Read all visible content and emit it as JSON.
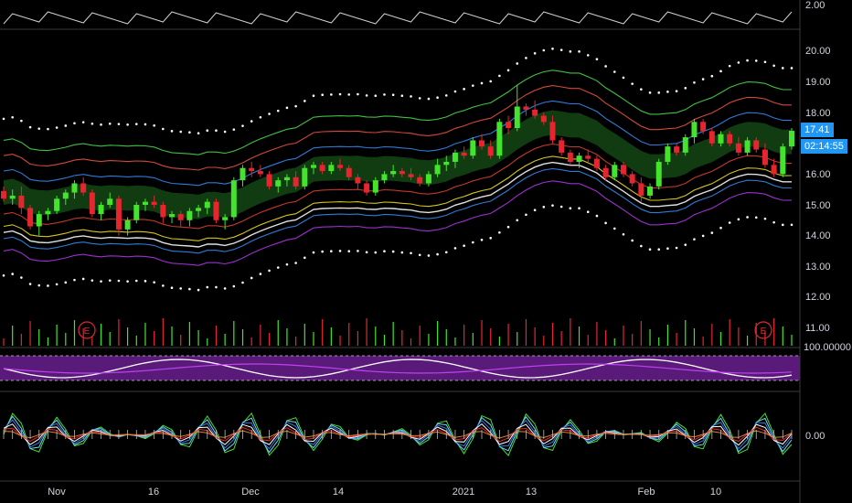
{
  "colors": {
    "background": "#000000",
    "up": "#44e32c",
    "down": "#e5262f",
    "down_alt": "#e3812f",
    "white_line": "#e0e0e0",
    "purple": "#a020f0",
    "badge": "#2196f3"
  },
  "top_panel": {
    "tick_label": "2.00"
  },
  "price_axis": {
    "ticks": [
      "20.00",
      "19.00",
      "18.00",
      "16.00",
      "15.00",
      "14.00",
      "13.00",
      "12.00",
      "11.00"
    ]
  },
  "badges": {
    "price": "17.41",
    "countdown": "02:14:55"
  },
  "rsi_panel": {
    "tick_label": "100.00000"
  },
  "osc_panel": {
    "tick_label": "0.00"
  },
  "x_axis": {
    "labels": [
      "Nov",
      "16",
      "Dec",
      "14",
      "2021",
      "13",
      "Feb",
      "10"
    ]
  },
  "earnings_markers": [
    "E",
    "E"
  ],
  "chart_data": {
    "type": "candlestick",
    "ylim": [
      10.7,
      20.5
    ],
    "candles": [
      [
        15.45,
        15.6,
        15.1,
        15.2
      ],
      [
        15.2,
        15.5,
        15.0,
        15.3
      ],
      [
        15.3,
        15.6,
        14.7,
        14.9
      ],
      [
        14.9,
        15.0,
        14.2,
        14.3
      ],
      [
        14.3,
        14.8,
        14.0,
        14.7
      ],
      [
        14.7,
        14.9,
        14.5,
        14.8
      ],
      [
        14.8,
        15.3,
        14.7,
        15.2
      ],
      [
        15.2,
        15.5,
        15.0,
        15.4
      ],
      [
        15.4,
        15.8,
        15.2,
        15.7
      ],
      [
        15.7,
        15.9,
        15.3,
        15.4
      ],
      [
        15.4,
        15.5,
        14.6,
        14.7
      ],
      [
        14.7,
        15.1,
        14.5,
        15.0
      ],
      [
        15.0,
        15.4,
        14.9,
        15.2
      ],
      [
        15.2,
        15.3,
        14.0,
        14.2
      ],
      [
        14.2,
        14.6,
        14.0,
        14.5
      ],
      [
        14.5,
        15.1,
        14.4,
        15.0
      ],
      [
        15.0,
        15.2,
        14.8,
        15.1
      ],
      [
        15.1,
        15.3,
        14.9,
        15.0
      ],
      [
        15.0,
        15.1,
        14.4,
        14.6
      ],
      [
        14.6,
        14.8,
        14.4,
        14.7
      ],
      [
        14.7,
        14.8,
        14.3,
        14.5
      ],
      [
        14.5,
        14.9,
        14.3,
        14.8
      ],
      [
        14.8,
        15.0,
        14.6,
        14.9
      ],
      [
        14.9,
        15.2,
        14.7,
        15.1
      ],
      [
        15.1,
        15.2,
        14.4,
        14.5
      ],
      [
        14.5,
        14.7,
        14.2,
        14.6
      ],
      [
        14.6,
        15.9,
        14.5,
        15.8
      ],
      [
        15.8,
        16.3,
        15.6,
        16.2
      ],
      [
        16.2,
        16.4,
        15.9,
        16.1
      ],
      [
        16.1,
        16.3,
        15.9,
        16.0
      ],
      [
        16.0,
        16.1,
        15.5,
        15.6
      ],
      [
        15.6,
        15.9,
        15.4,
        15.8
      ],
      [
        15.8,
        16.0,
        15.6,
        15.9
      ],
      [
        15.9,
        16.1,
        15.5,
        15.6
      ],
      [
        15.6,
        16.3,
        15.5,
        16.2
      ],
      [
        16.2,
        16.4,
        16.0,
        16.3
      ],
      [
        16.3,
        16.4,
        16.0,
        16.1
      ],
      [
        16.1,
        16.4,
        16.0,
        16.3
      ],
      [
        16.3,
        16.5,
        16.1,
        16.2
      ],
      [
        16.2,
        16.3,
        15.8,
        15.9
      ],
      [
        15.9,
        16.0,
        15.5,
        15.7
      ],
      [
        15.7,
        15.8,
        15.3,
        15.4
      ],
      [
        15.4,
        15.9,
        15.3,
        15.8
      ],
      [
        15.8,
        16.1,
        15.7,
        16.0
      ],
      [
        16.0,
        16.3,
        15.9,
        16.1
      ],
      [
        16.1,
        16.2,
        15.9,
        16.0
      ],
      [
        16.0,
        16.2,
        15.8,
        15.9
      ],
      [
        15.9,
        16.0,
        15.6,
        15.7
      ],
      [
        15.7,
        16.1,
        15.6,
        16.0
      ],
      [
        16.0,
        16.5,
        15.9,
        16.3
      ],
      [
        16.3,
        16.6,
        16.1,
        16.4
      ],
      [
        16.4,
        16.8,
        16.2,
        16.7
      ],
      [
        16.7,
        16.9,
        16.5,
        16.6
      ],
      [
        16.6,
        17.2,
        16.5,
        17.1
      ],
      [
        17.1,
        17.3,
        16.8,
        16.9
      ],
      [
        16.9,
        17.1,
        16.5,
        16.6
      ],
      [
        16.6,
        17.8,
        16.5,
        17.7
      ],
      [
        17.7,
        17.9,
        17.3,
        17.5
      ],
      [
        17.5,
        18.9,
        17.4,
        18.2
      ],
      [
        18.2,
        18.3,
        17.9,
        18.1
      ],
      [
        18.1,
        18.4,
        17.8,
        17.9
      ],
      [
        17.9,
        18.0,
        17.6,
        17.7
      ],
      [
        17.7,
        17.9,
        17.0,
        17.1
      ],
      [
        17.1,
        17.2,
        16.6,
        16.7
      ],
      [
        16.7,
        16.8,
        16.3,
        16.4
      ],
      [
        16.4,
        16.7,
        16.2,
        16.6
      ],
      [
        16.6,
        16.8,
        16.4,
        16.5
      ],
      [
        16.5,
        16.6,
        16.1,
        16.2
      ],
      [
        16.2,
        16.3,
        15.8,
        15.9
      ],
      [
        15.9,
        16.4,
        15.8,
        16.3
      ],
      [
        16.3,
        16.4,
        15.9,
        16.0
      ],
      [
        16.0,
        16.1,
        15.6,
        15.7
      ],
      [
        15.7,
        15.9,
        15.1,
        15.3
      ],
      [
        15.3,
        15.7,
        15.2,
        15.6
      ],
      [
        15.6,
        16.5,
        15.5,
        16.4
      ],
      [
        16.4,
        17.0,
        16.3,
        16.9
      ],
      [
        16.9,
        17.0,
        16.6,
        16.7
      ],
      [
        16.7,
        17.3,
        16.6,
        17.2
      ],
      [
        17.2,
        17.8,
        17.0,
        17.7
      ],
      [
        17.7,
        17.8,
        17.3,
        17.4
      ],
      [
        17.4,
        17.5,
        16.9,
        17.0
      ],
      [
        17.0,
        17.4,
        16.9,
        17.3
      ],
      [
        17.3,
        17.4,
        16.9,
        17.0
      ],
      [
        17.0,
        17.2,
        16.6,
        16.7
      ],
      [
        16.7,
        17.2,
        16.6,
        17.1
      ],
      [
        17.1,
        17.2,
        16.7,
        16.8
      ],
      [
        16.8,
        17.0,
        16.2,
        16.3
      ],
      [
        16.3,
        16.5,
        15.9,
        16.0
      ],
      [
        16.0,
        17.0,
        15.9,
        16.9
      ],
      [
        16.9,
        17.5,
        16.8,
        17.41
      ]
    ]
  }
}
